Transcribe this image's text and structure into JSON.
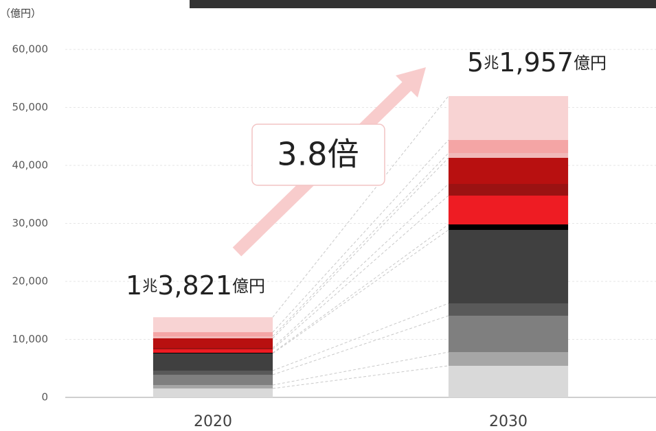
{
  "chart_data": {
    "type": "stacked_bar",
    "y_label": "（億円）",
    "categories": [
      "2020",
      "2030"
    ],
    "series": [
      {
        "color": "#d9d9d9",
        "values": [
          1538,
          5444
        ]
      },
      {
        "color": "#a6a6a6",
        "values": [
          592,
          2367
        ]
      },
      {
        "color": "#7f7f7f",
        "values": [
          1775,
          6272
        ]
      },
      {
        "color": "#595959",
        "values": [
          710,
          2130
        ]
      },
      {
        "color": "#404040",
        "values": [
          2959,
          12663
        ]
      },
      {
        "color": "#000000",
        "values": [
          118,
          946
        ]
      },
      {
        "color": "#ee1c23",
        "values": [
          592,
          4971
        ]
      },
      {
        "color": "#9b1212",
        "values": [
          237,
          2012
        ]
      },
      {
        "color": "#b81010",
        "values": [
          1657,
          4497
        ]
      },
      {
        "color": "#f1b8b8",
        "values": [
          355,
          828
        ]
      },
      {
        "color": "#f4a5a5",
        "values": [
          710,
          2249
        ]
      },
      {
        "color": "#f8d3d3",
        "values": [
          2578,
          7578
        ]
      }
    ],
    "total_labels": [
      [
        "1",
        "兆",
        "3,821",
        "億円"
      ],
      [
        "5",
        "兆",
        "1,957",
        "億円"
      ]
    ],
    "growth_label": "3.8倍",
    "ylim": [
      0,
      60000
    ],
    "yticks": [
      0,
      {
        "value": 10000,
        "label": "10,000"
      },
      {
        "value": 20000,
        "label": "20,000"
      },
      {
        "value": 30000,
        "label": "30,000"
      },
      {
        "value": 40000,
        "label": "40,000"
      },
      {
        "value": 50000,
        "label": "50,000"
      },
      {
        "value": 60000,
        "label": "60,000"
      }
    ],
    "grid": true
  }
}
